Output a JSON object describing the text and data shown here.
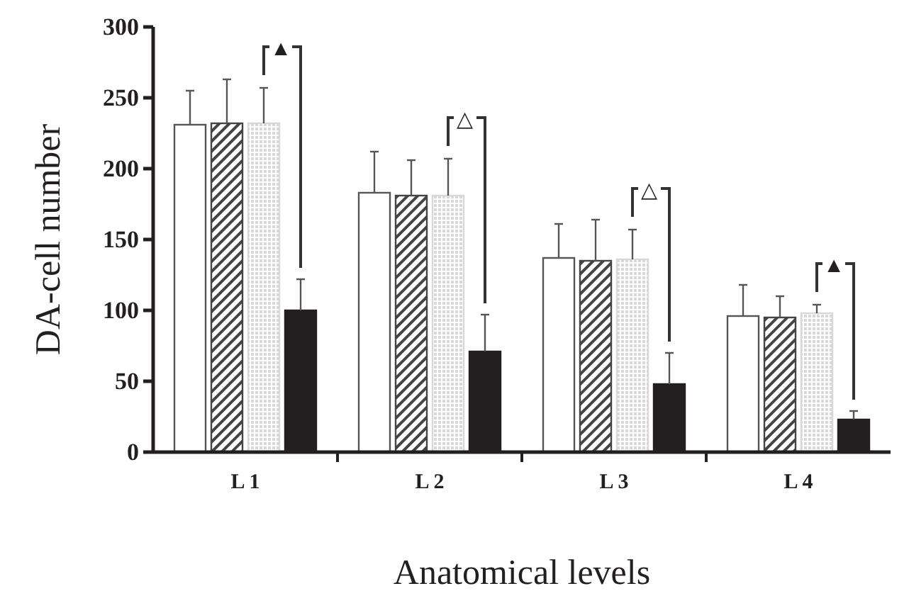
{
  "chart_data": {
    "type": "bar",
    "xlabel": "Anatomical levels",
    "ylabel": "DA-cell number",
    "categories": [
      "L 1",
      "L 2",
      "L 3",
      "L 4"
    ],
    "ylim": [
      0,
      300
    ],
    "yticks": [
      0,
      50,
      100,
      150,
      200,
      250,
      300
    ],
    "grid": false,
    "series": [
      {
        "color": "#ffffff",
        "values": [
          231,
          183,
          137,
          96
        ],
        "errors": [
          [
            231,
            255
          ],
          [
            183,
            212
          ],
          [
            137,
            161
          ],
          [
            96,
            118
          ]
        ]
      },
      {
        "color": "#444444",
        "values": [
          232,
          181,
          135,
          95
        ],
        "errors": [
          [
            232,
            263
          ],
          [
            181,
            206
          ],
          [
            135,
            164
          ],
          [
            95,
            110
          ]
        ]
      },
      {
        "color": "#d8d8d8",
        "values": [
          232,
          181,
          136,
          98
        ],
        "errors": [
          [
            232,
            257
          ],
          [
            181,
            207
          ],
          [
            136,
            157
          ],
          [
            98,
            104
          ]
        ]
      },
      {
        "color": "#231f20",
        "values": [
          100,
          71,
          48,
          23
        ],
        "errors": [
          [
            100,
            122
          ],
          [
            71,
            97
          ],
          [
            48,
            70
          ],
          [
            23,
            29
          ]
        ]
      }
    ],
    "annotations": [
      "▲",
      "△",
      "△",
      "▲"
    ]
  }
}
